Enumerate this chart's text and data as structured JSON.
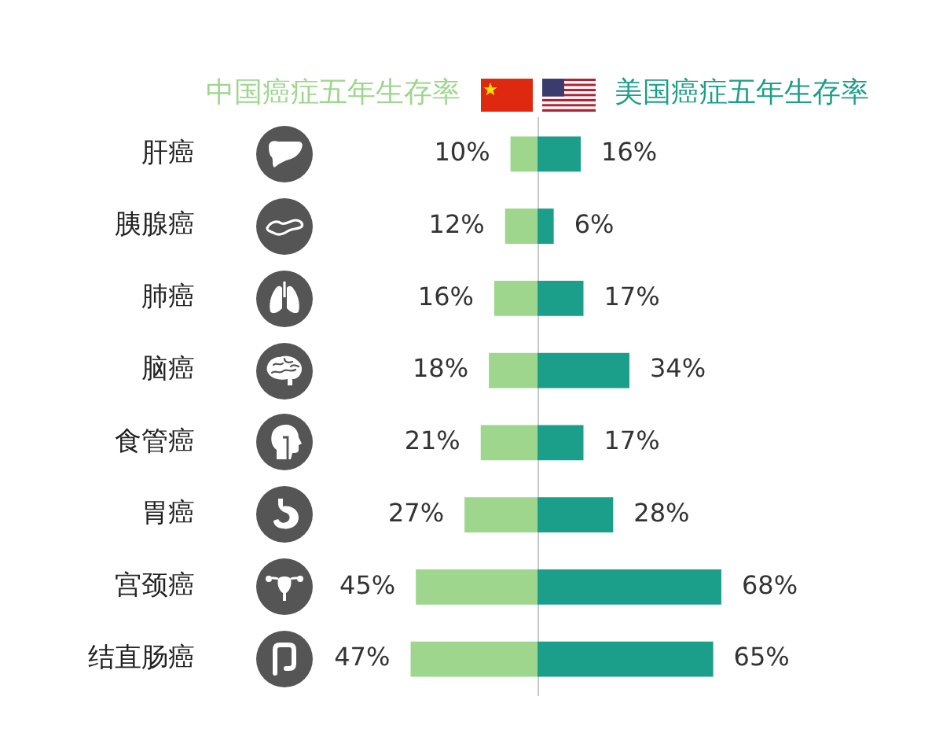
{
  "chart_data": [
    {
      "type": "bar",
      "orientation": "horizontal",
      "legend": "top left",
      "categories": [
        "肝癌",
        "胰腺癌",
        "肺癌",
        "脑癌",
        "食管癌",
        "胃癌",
        "宫颈癌",
        "结直肠癌"
      ],
      "series": [
        {
          "name": "中国癌症五年生存率",
          "color": "#9dd68c",
          "values": [
            10,
            12,
            16,
            18,
            21,
            27,
            45,
            47
          ],
          "value_labels": [
            "10%",
            "12%",
            "16%",
            "18%",
            "21%",
            "27%",
            "45%",
            "47%"
          ]
        }
      ]
    },
    {
      "type": "bar",
      "orientation": "horizontal",
      "legend": "top right",
      "categories": [
        null,
        null,
        null,
        null,
        null,
        null,
        null,
        null
      ],
      "series": [
        {
          "name": "美国癌症五年生存率",
          "color": "#1b9e8a",
          "values": [
            16,
            6,
            17,
            34,
            17,
            28,
            68,
            65
          ],
          "value_labels": [
            "16%",
            "6%",
            "17%",
            "34%",
            "17%",
            "28%",
            "68%",
            "65%"
          ]
        }
      ]
    }
  ]
}
